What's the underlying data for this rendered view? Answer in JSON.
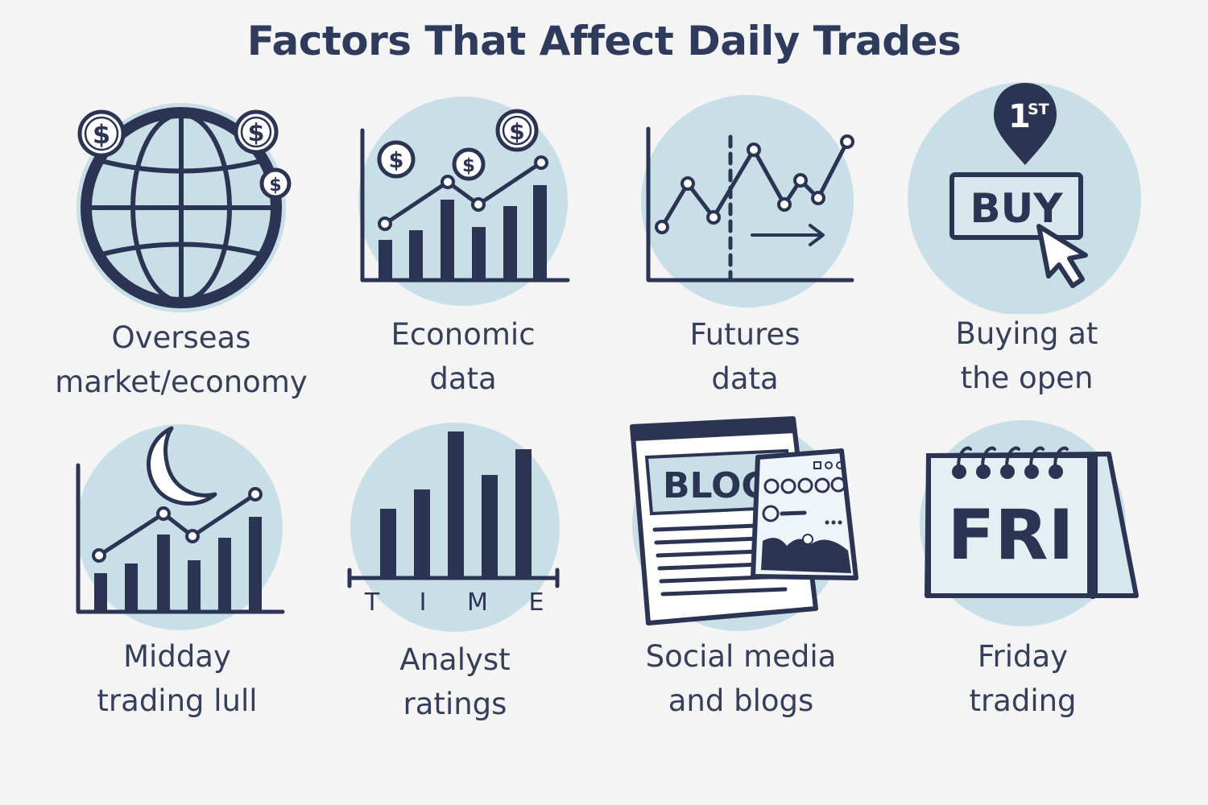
{
  "title": "Factors That Affect Daily Trades",
  "factors": [
    {
      "line1": "Overseas",
      "line2": "market/economy",
      "icon": "globe-with-coins-icon"
    },
    {
      "line1": "Economic",
      "line2": "data",
      "icon": "bar-line-chart-with-coins-icon"
    },
    {
      "line1": "Futures",
      "line2": "data",
      "icon": "line-chart-forecast-icon"
    },
    {
      "line1": "Buying at",
      "line2": "the open",
      "icon": "buy-button-cursor-icon"
    },
    {
      "line1": "Midday",
      "line2": "trading lull",
      "icon": "moon-chart-icon"
    },
    {
      "line1": "Analyst",
      "line2": "ratings",
      "icon": "bar-chart-time-icon"
    },
    {
      "line1": "Social media",
      "line2": "and blogs",
      "icon": "blog-page-icon"
    },
    {
      "line1": "Friday",
      "line2": "trading",
      "icon": "calendar-friday-icon"
    }
  ],
  "icon_text": {
    "coin_symbol": "$",
    "first_badge": "1",
    "first_badge_suffix": "ST",
    "buy_label": "BUY",
    "time_label": [
      "T",
      "I",
      "M",
      "E"
    ],
    "blog_label": "BLOG",
    "calendar_day": "FRI"
  },
  "colors": {
    "background": "#f4f4f4",
    "circle": "#c9dfe8",
    "ink": "#2b3553",
    "title": "#2e3b5c"
  }
}
